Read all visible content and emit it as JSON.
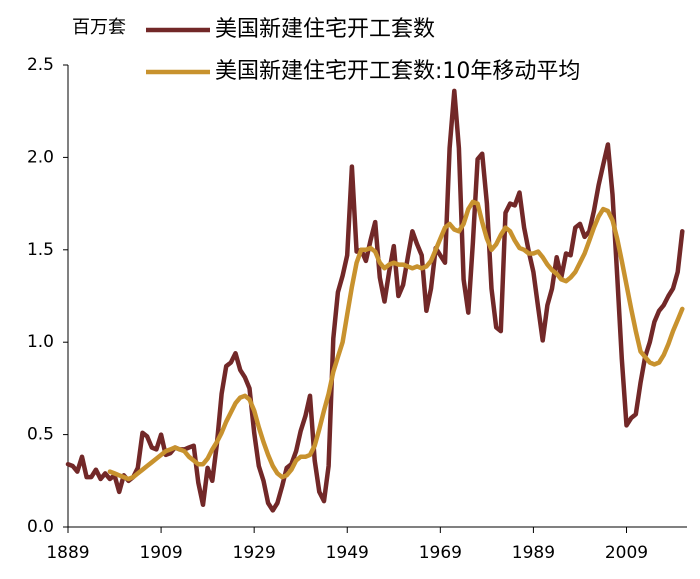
{
  "chart_data": {
    "type": "line",
    "y_label": "百万套",
    "x": [
      1889,
      1890,
      1891,
      1892,
      1893,
      1894,
      1895,
      1896,
      1897,
      1898,
      1899,
      1900,
      1901,
      1902,
      1903,
      1904,
      1905,
      1906,
      1907,
      1908,
      1909,
      1910,
      1911,
      1912,
      1913,
      1914,
      1915,
      1916,
      1917,
      1918,
      1919,
      1920,
      1921,
      1922,
      1923,
      1924,
      1925,
      1926,
      1927,
      1928,
      1929,
      1930,
      1931,
      1932,
      1933,
      1934,
      1935,
      1936,
      1937,
      1938,
      1939,
      1940,
      1941,
      1942,
      1943,
      1944,
      1945,
      1946,
      1947,
      1948,
      1949,
      1950,
      1951,
      1952,
      1953,
      1954,
      1955,
      1956,
      1957,
      1958,
      1959,
      1960,
      1961,
      1962,
      1963,
      1964,
      1965,
      1966,
      1967,
      1968,
      1969,
      1970,
      1971,
      1972,
      1973,
      1974,
      1975,
      1976,
      1977,
      1978,
      1979,
      1980,
      1981,
      1982,
      1983,
      1984,
      1985,
      1986,
      1987,
      1988,
      1989,
      1990,
      1991,
      1992,
      1993,
      1994,
      1995,
      1996,
      1997,
      1998,
      1999,
      2000,
      2001,
      2002,
      2003,
      2004,
      2005,
      2006,
      2007,
      2008,
      2009,
      2010,
      2011,
      2012,
      2013,
      2014,
      2015,
      2016,
      2017,
      2018,
      2019,
      2020,
      2021
    ],
    "series": [
      {
        "name": "美国新建住宅开工套数",
        "color": "#722828",
        "values": [
          0.34,
          0.33,
          0.3,
          0.38,
          0.27,
          0.27,
          0.31,
          0.26,
          0.29,
          0.26,
          0.28,
          0.19,
          0.28,
          0.25,
          0.27,
          0.32,
          0.51,
          0.49,
          0.43,
          0.42,
          0.5,
          0.39,
          0.4,
          0.43,
          0.42,
          0.42,
          0.43,
          0.44,
          0.24,
          0.12,
          0.32,
          0.25,
          0.45,
          0.72,
          0.87,
          0.89,
          0.94,
          0.85,
          0.81,
          0.75,
          0.51,
          0.33,
          0.25,
          0.13,
          0.09,
          0.13,
          0.22,
          0.32,
          0.34,
          0.41,
          0.52,
          0.6,
          0.71,
          0.36,
          0.19,
          0.14,
          0.33,
          1.02,
          1.27,
          1.36,
          1.47,
          1.95,
          1.49,
          1.5,
          1.44,
          1.55,
          1.65,
          1.35,
          1.22,
          1.38,
          1.52,
          1.25,
          1.31,
          1.46,
          1.6,
          1.53,
          1.47,
          1.17,
          1.29,
          1.51,
          1.47,
          1.43,
          2.05,
          2.36,
          2.05,
          1.34,
          1.16,
          1.54,
          1.99,
          2.02,
          1.75,
          1.29,
          1.08,
          1.06,
          1.7,
          1.75,
          1.74,
          1.81,
          1.62,
          1.49,
          1.38,
          1.19,
          1.01,
          1.2,
          1.29,
          1.46,
          1.35,
          1.48,
          1.47,
          1.62,
          1.64,
          1.57,
          1.6,
          1.71,
          1.85,
          1.96,
          2.07,
          1.8,
          1.36,
          0.91,
          0.55,
          0.59,
          0.61,
          0.78,
          0.92,
          1.0,
          1.11,
          1.17,
          1.2,
          1.25,
          1.29,
          1.38,
          1.6
        ]
      },
      {
        "name": "美国新建住宅开工套数:10年移动平均",
        "color": "#C8922E",
        "values": [
          null,
          null,
          null,
          null,
          null,
          null,
          null,
          null,
          null,
          0.3,
          0.29,
          0.28,
          0.27,
          0.26,
          0.27,
          0.29,
          0.31,
          0.33,
          0.35,
          0.37,
          0.39,
          0.41,
          0.42,
          0.43,
          0.42,
          0.41,
          0.38,
          0.36,
          0.34,
          0.34,
          0.37,
          0.42,
          0.46,
          0.51,
          0.57,
          0.62,
          0.67,
          0.7,
          0.71,
          0.69,
          0.63,
          0.54,
          0.46,
          0.39,
          0.33,
          0.29,
          0.27,
          0.28,
          0.31,
          0.36,
          0.38,
          0.38,
          0.39,
          0.44,
          0.53,
          0.63,
          0.72,
          0.84,
          0.92,
          1.0,
          1.15,
          1.3,
          1.43,
          1.5,
          1.5,
          1.51,
          1.49,
          1.43,
          1.4,
          1.42,
          1.43,
          1.42,
          1.42,
          1.41,
          1.4,
          1.41,
          1.4,
          1.41,
          1.44,
          1.5,
          1.56,
          1.62,
          1.64,
          1.61,
          1.6,
          1.64,
          1.72,
          1.76,
          1.75,
          1.65,
          1.56,
          1.5,
          1.53,
          1.58,
          1.62,
          1.6,
          1.55,
          1.51,
          1.5,
          1.48,
          1.48,
          1.49,
          1.46,
          1.42,
          1.39,
          1.37,
          1.34,
          1.33,
          1.35,
          1.38,
          1.43,
          1.48,
          1.55,
          1.62,
          1.68,
          1.72,
          1.71,
          1.66,
          1.56,
          1.44,
          1.31,
          1.18,
          1.06,
          0.95,
          0.92,
          0.89,
          0.88,
          0.89,
          0.93,
          0.99,
          1.06,
          1.12,
          1.18
        ]
      }
    ],
    "xlim": [
      1889,
      2022
    ],
    "xticks": [
      1889,
      1909,
      1929,
      1949,
      1969,
      1989,
      2009
    ],
    "ylim": [
      0,
      2.5
    ],
    "yticks": [
      {
        "value": 0,
        "label": "0.0"
      },
      0.5,
      {
        "value": 1,
        "label": "1.0"
      },
      1.5,
      {
        "value": 2,
        "label": "2.0"
      },
      2.5
    ]
  }
}
